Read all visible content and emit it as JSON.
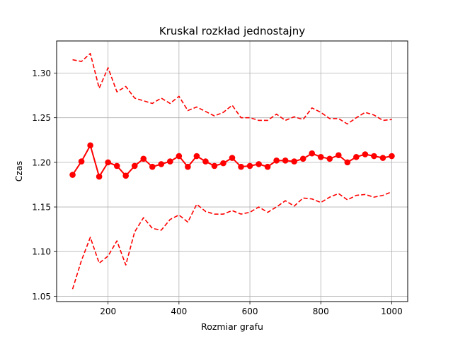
{
  "chart_data": {
    "type": "line",
    "title": "Kruskal rozkład jednostajny",
    "xlabel": "Rozmiar grafu",
    "ylabel": "Czas",
    "xlim": [
      55,
      1045
    ],
    "ylim": [
      1.044,
      1.336
    ],
    "xticks": [
      200,
      400,
      600,
      800,
      1000
    ],
    "yticks": [
      1.05,
      1.1,
      1.15,
      1.2,
      1.25,
      1.3
    ],
    "xtick_labels": [
      "200",
      "400",
      "600",
      "800",
      "1000"
    ],
    "ytick_labels": [
      "1.05",
      "1.10",
      "1.15",
      "1.20",
      "1.25",
      "1.30"
    ],
    "grid": true,
    "legend": "none",
    "x": [
      100,
      125,
      150,
      175,
      200,
      225,
      250,
      275,
      300,
      325,
      350,
      375,
      400,
      425,
      450,
      475,
      500,
      525,
      550,
      575,
      600,
      625,
      650,
      675,
      700,
      725,
      750,
      775,
      800,
      825,
      850,
      875,
      900,
      925,
      950,
      975,
      1000
    ],
    "series": [
      {
        "style": "solid-marker",
        "color": "#ff0000",
        "values": [
          1.186,
          1.201,
          1.219,
          1.184,
          1.2,
          1.196,
          1.185,
          1.196,
          1.204,
          1.195,
          1.198,
          1.201,
          1.207,
          1.195,
          1.207,
          1.201,
          1.196,
          1.199,
          1.205,
          1.195,
          1.196,
          1.198,
          1.195,
          1.202,
          1.202,
          1.201,
          1.204,
          1.21,
          1.206,
          1.204,
          1.208,
          1.2,
          1.206,
          1.209,
          1.207,
          1.205,
          1.207
        ]
      },
      {
        "style": "dashed",
        "color": "#ff0000",
        "values": [
          1.315,
          1.313,
          1.322,
          1.283,
          1.306,
          1.279,
          1.285,
          1.272,
          1.269,
          1.266,
          1.272,
          1.266,
          1.274,
          1.258,
          1.262,
          1.257,
          1.252,
          1.256,
          1.264,
          1.25,
          1.25,
          1.247,
          1.247,
          1.254,
          1.247,
          1.251,
          1.248,
          1.261,
          1.256,
          1.249,
          1.249,
          1.243,
          1.25,
          1.256,
          1.253,
          1.247,
          1.248
        ]
      },
      {
        "style": "dashed",
        "color": "#ff0000",
        "values": [
          1.058,
          1.09,
          1.116,
          1.087,
          1.095,
          1.112,
          1.085,
          1.122,
          1.138,
          1.126,
          1.124,
          1.136,
          1.141,
          1.133,
          1.153,
          1.145,
          1.142,
          1.142,
          1.146,
          1.142,
          1.144,
          1.15,
          1.144,
          1.15,
          1.157,
          1.151,
          1.16,
          1.159,
          1.155,
          1.161,
          1.165,
          1.158,
          1.163,
          1.164,
          1.161,
          1.163,
          1.167
        ]
      }
    ]
  }
}
